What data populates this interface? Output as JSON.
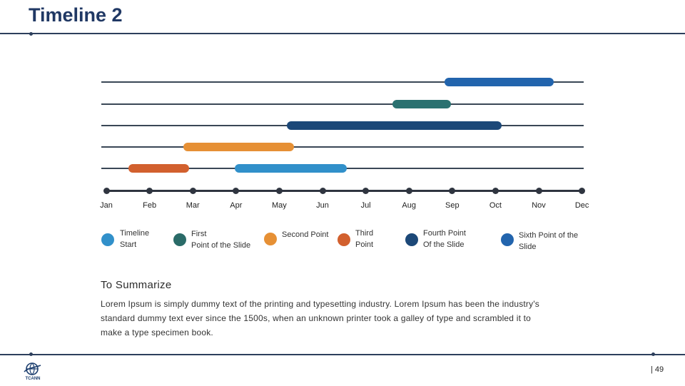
{
  "header": {
    "title": "Timeline 2"
  },
  "months": [
    "Jan",
    "Feb",
    "Mar",
    "Apr",
    "May",
    "Jun",
    "Jul",
    "Aug",
    "Sep",
    "Oct",
    "Nov",
    "Dec"
  ],
  "colors": {
    "sixth": "#2264ad",
    "third": "#2a7170",
    "fourth": "#1c4878",
    "first": "#e69035",
    "second": "#d2602e",
    "start": "#3190ca"
  },
  "legend": [
    {
      "line1": "Timeline",
      "line2": "Start",
      "color": "#3190ca"
    },
    {
      "line1": "First",
      "line2": "Point of the Slide",
      "color": "#2a6b68"
    },
    {
      "line1": "Second Point",
      "line2": "",
      "color": "#e69035"
    },
    {
      "line1": "Third",
      "line2": "Point",
      "color": "#d2602e"
    },
    {
      "line1": "Fourth Point",
      "line2": "Of the Slide",
      "color": "#1c4878"
    },
    {
      "line1": "Sixth Point of the",
      "line2": "Slide",
      "color": "#2264ad"
    }
  ],
  "summary": {
    "title": "To Summarize",
    "body": "Lorem Ipsum is simply dummy text of the printing and typesetting industry. Lorem Ipsum has been the industry's standard dummy text ever since the 1500s, when an unknown printer took a galley of type and scrambled it to make a type specimen book."
  },
  "footer": {
    "page": "| 49",
    "logo_icon": "globe-logo-icon",
    "logo_text": "TCANN"
  }
}
